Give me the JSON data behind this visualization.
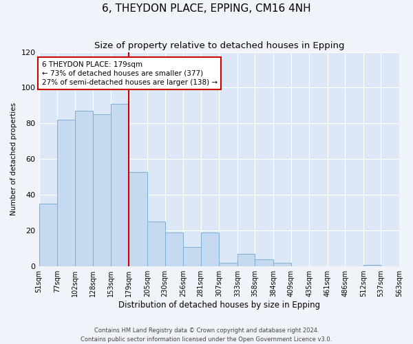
{
  "title": "6, THEYDON PLACE, EPPING, CM16 4NH",
  "subtitle": "Size of property relative to detached houses in Epping",
  "xlabel": "Distribution of detached houses by size in Epping",
  "ylabel": "Number of detached properties",
  "bar_color": "#c5d9f0",
  "bar_edge_color": "#7bafd4",
  "bg_color": "#dce8f5",
  "grid_color": "#ffffff",
  "vline_x": 179,
  "vline_color": "#cc0000",
  "annotation_text": "6 THEYDON PLACE: 179sqm\n← 73% of detached houses are smaller (377)\n27% of semi-detached houses are larger (138) →",
  "annotation_box_color": "#ffffff",
  "annotation_box_edge": "#cc0000",
  "bins": [
    51,
    77,
    102,
    128,
    153,
    179,
    205,
    230,
    256,
    281,
    307,
    333,
    358,
    384,
    409,
    435,
    461,
    486,
    512,
    537,
    563
  ],
  "counts": [
    35,
    82,
    87,
    85,
    91,
    53,
    25,
    19,
    11,
    19,
    2,
    7,
    4,
    2,
    0,
    0,
    0,
    0,
    1,
    0
  ],
  "ylim": [
    0,
    120
  ],
  "yticks": [
    0,
    20,
    40,
    60,
    80,
    100,
    120
  ],
  "footer_text": "Contains HM Land Registry data © Crown copyright and database right 2024.\nContains public sector information licensed under the Open Government Licence v3.0.",
  "title_fontsize": 11,
  "subtitle_fontsize": 9.5,
  "xlabel_fontsize": 8.5,
  "ylabel_fontsize": 7.5,
  "tick_fontsize": 7,
  "footer_fontsize": 6,
  "fig_bg": "#f0f4fa"
}
